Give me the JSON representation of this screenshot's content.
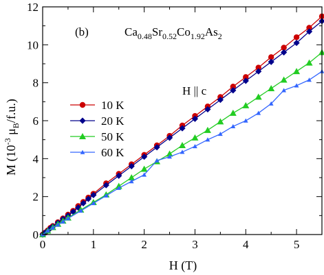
{
  "chart_data": {
    "type": "line",
    "panel_label": "(b)",
    "title": {
      "parts": [
        {
          "text": "Ca",
          "sub": false
        },
        {
          "text": "0.48",
          "sub": true
        },
        {
          "text": "Sr",
          "sub": false
        },
        {
          "text": "0.52",
          "sub": true
        },
        {
          "text": "Co",
          "sub": false
        },
        {
          "text": "1.92",
          "sub": true
        },
        {
          "text": "As",
          "sub": false
        },
        {
          "text": "2",
          "sub": true
        }
      ]
    },
    "annotation": "H || c",
    "xlabel": "H (T)",
    "ylabel": {
      "prefix": "M (10",
      "sup": "-3",
      "mu": "μ",
      "sub": "B",
      "suffix": "/f.u.)"
    },
    "xlim": [
      0,
      5.5
    ],
    "ylim": [
      0,
      12
    ],
    "xticks": [
      0,
      1,
      2,
      3,
      4,
      5
    ],
    "yticks": [
      0,
      2,
      4,
      6,
      8,
      10,
      12
    ],
    "grid": false,
    "legend_position": "left-center",
    "series": [
      {
        "name": "10 K",
        "color": "#cc0000",
        "marker": "circle",
        "x": [
          0,
          0.05,
          0.1,
          0.15,
          0.2,
          0.3,
          0.4,
          0.5,
          0.6,
          0.7,
          0.8,
          0.9,
          1.0,
          1.25,
          1.5,
          1.75,
          2.0,
          2.25,
          2.5,
          2.75,
          3.0,
          3.25,
          3.5,
          3.75,
          4.0,
          4.25,
          4.5,
          4.75,
          5.0,
          5.25,
          5.5
        ],
        "y": [
          0,
          0.1,
          0.22,
          0.35,
          0.45,
          0.65,
          0.85,
          1.05,
          1.25,
          1.5,
          1.72,
          1.95,
          2.15,
          2.7,
          3.2,
          3.7,
          4.2,
          4.7,
          5.2,
          5.75,
          6.25,
          6.75,
          7.25,
          7.8,
          8.3,
          8.8,
          9.35,
          9.85,
          10.4,
          10.9,
          11.5
        ]
      },
      {
        "name": "20 K",
        "color": "#00008b",
        "marker": "diamond",
        "x": [
          0,
          0.05,
          0.1,
          0.15,
          0.2,
          0.3,
          0.4,
          0.5,
          0.6,
          0.7,
          0.8,
          0.9,
          1.0,
          1.25,
          1.5,
          1.75,
          2.0,
          2.25,
          2.5,
          2.75,
          3.0,
          3.25,
          3.5,
          3.75,
          4.0,
          4.25,
          4.5,
          4.75,
          5.0,
          5.25,
          5.5
        ],
        "y": [
          0,
          0.1,
          0.2,
          0.32,
          0.42,
          0.62,
          0.82,
          1.0,
          1.2,
          1.42,
          1.65,
          1.88,
          2.08,
          2.6,
          3.1,
          3.6,
          4.1,
          4.6,
          5.1,
          5.6,
          6.1,
          6.6,
          7.1,
          7.6,
          8.1,
          8.6,
          9.1,
          9.6,
          10.1,
          10.7,
          11.25
        ]
      },
      {
        "name": "50 K",
        "color": "#22cc22",
        "marker": "triangle",
        "x": [
          0,
          0.1,
          0.2,
          0.3,
          0.4,
          0.5,
          0.75,
          1.0,
          1.25,
          1.5,
          1.75,
          2.0,
          2.25,
          2.5,
          2.75,
          3.0,
          3.25,
          3.5,
          3.75,
          4.0,
          4.25,
          4.5,
          4.75,
          5.0,
          5.25,
          5.5
        ],
        "y": [
          0,
          0.2,
          0.38,
          0.55,
          0.72,
          0.88,
          1.3,
          1.7,
          2.1,
          2.55,
          3.0,
          3.45,
          3.85,
          4.25,
          4.7,
          5.1,
          5.5,
          5.95,
          6.4,
          6.8,
          7.25,
          7.7,
          8.15,
          8.6,
          9.05,
          9.6
        ]
      },
      {
        "name": "60 K",
        "color": "#3366ff",
        "marker": "triangle-small",
        "x": [
          0,
          0.1,
          0.2,
          0.3,
          0.4,
          0.5,
          0.75,
          1.0,
          1.25,
          1.5,
          1.75,
          2.0,
          2.25,
          2.5,
          2.75,
          3.0,
          3.25,
          3.5,
          3.75,
          4.0,
          4.25,
          4.5,
          4.75,
          5.0,
          5.25,
          5.5
        ],
        "y": [
          0,
          0.2,
          0.36,
          0.52,
          0.68,
          0.85,
          1.25,
          1.65,
          2.05,
          2.45,
          2.8,
          3.15,
          3.9,
          4.1,
          4.35,
          4.65,
          5.0,
          5.3,
          5.7,
          6.0,
          6.4,
          6.9,
          7.6,
          7.85,
          8.15,
          8.6
        ]
      }
    ]
  }
}
